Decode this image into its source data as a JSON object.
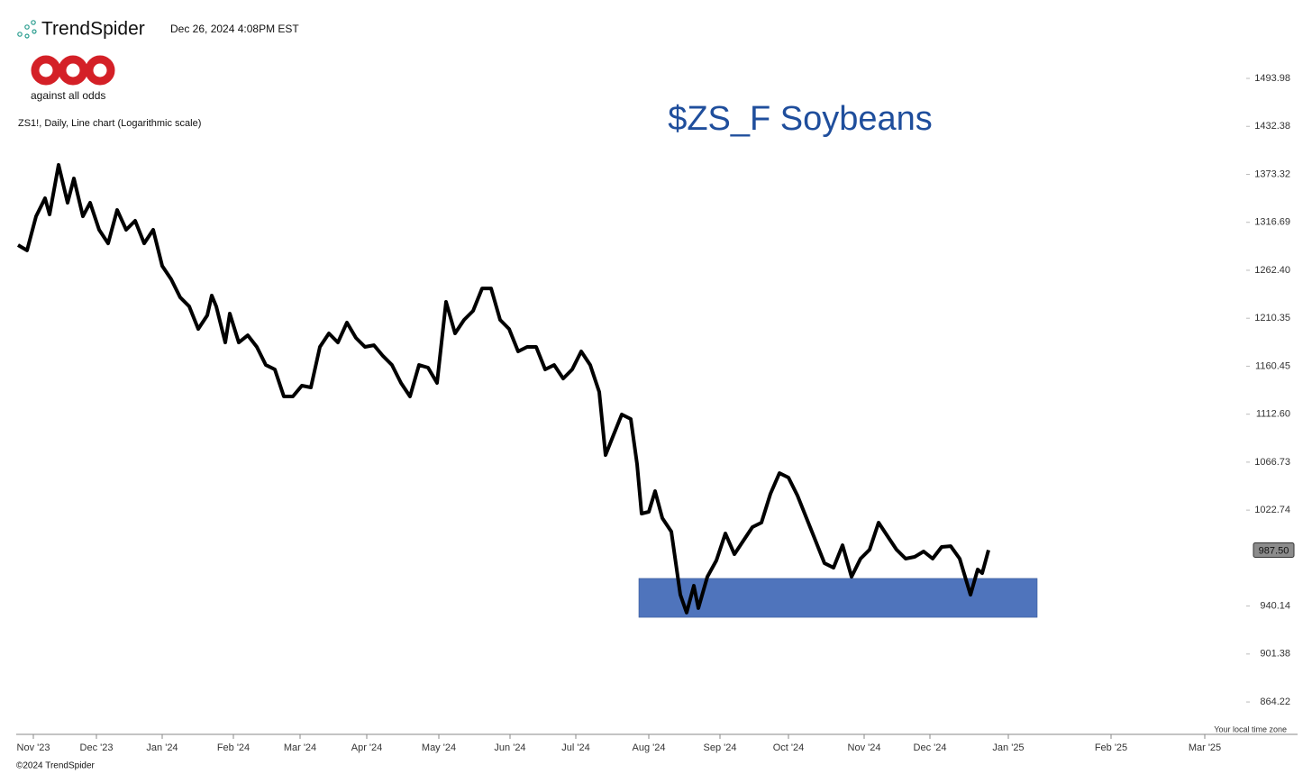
{
  "brand": "TrendSpider",
  "timestamp": "Dec 26, 2024 4:08PM EST",
  "logo_text": "against all odds",
  "copyright": "©2024 TrendSpider",
  "chart_data": {
    "type": "line",
    "title": "$ZS_F Soybeans",
    "subtitle": "ZS1!, Daily, Line chart (Logarithmic scale)",
    "timezone_note": "Your local time zone",
    "log_scale": true,
    "color": "#000000",
    "x": [
      0,
      1,
      2,
      3,
      3.5,
      4.5,
      5.5,
      6.2,
      7.2,
      8,
      9,
      10,
      11,
      12,
      13,
      14,
      15,
      16,
      17,
      18,
      19,
      20,
      21,
      21.5,
      22,
      23,
      23.5,
      24.5,
      25.5,
      26.5,
      27.5,
      28.5,
      29.5,
      30.5,
      31.5,
      32.5,
      33.5,
      34.5,
      35.5,
      36.5,
      37.5,
      38.5,
      39.5,
      40.5,
      41.5,
      42.5,
      43.5,
      44.5,
      45.5,
      46.5,
      47.5,
      48.5,
      49.5,
      50.5,
      51.5,
      52.5,
      53.5,
      54.5,
      55.5,
      56.5,
      57.5,
      58.5,
      59.5,
      60.5,
      61.5,
      62.5,
      63.5,
      64.5,
      65.2,
      66,
      67,
      68,
      68.7,
      69.2,
      70,
      70.7,
      71.5,
      72.5,
      73.5,
      74.2,
      75,
      75.5,
      76.5,
      77.5,
      78.5,
      79.5,
      80.5,
      81.5,
      82.5,
      83.5,
      84.5,
      85.5,
      86.5,
      87.5,
      88.5,
      89.5,
      90.5,
      91.5,
      92.5,
      93.5,
      94.5,
      95.5,
      96.5,
      97.5,
      98.5,
      99.5,
      100.5,
      101.5,
      102.5,
      103.5,
      104.5,
      105.7,
      106.5,
      107,
      107.7
    ],
    "values": [
      1290.6,
      1284.6,
      1323.6,
      1344.8,
      1325.8,
      1384.8,
      1339.5,
      1368.4,
      1323.6,
      1339.5,
      1308.1,
      1292.6,
      1331.1,
      1308.1,
      1318.5,
      1292.6,
      1308.1,
      1267.3,
      1252.4,
      1232.7,
      1223.0,
      1199.0,
      1213.4,
      1234.7,
      1223.0,
      1184.9,
      1215.3,
      1184.9,
      1192.4,
      1180.3,
      1161.7,
      1157.2,
      1130.0,
      1130.0,
      1140.8,
      1139.0,
      1180.3,
      1194.4,
      1184.9,
      1205.8,
      1189.7,
      1180.3,
      1182.1,
      1170.9,
      1161.7,
      1143.5,
      1130.0,
      1161.7,
      1159.0,
      1143.5,
      1227.9,
      1194.4,
      1208.6,
      1218.2,
      1242.5,
      1242.5,
      1208.6,
      1199.0,
      1175.6,
      1180.3,
      1180.3,
      1157.2,
      1161.7,
      1148.0,
      1157.2,
      1175.6,
      1161.7,
      1134.5,
      1073.4,
      1090.6,
      1112.3,
      1107.9,
      1064.9,
      1019.6,
      1021.2,
      1039.9,
      1015.6,
      1003.6,
      949.5,
      934.7,
      957.0,
      938.4,
      964.6,
      978.5,
      1002.0,
      983.9,
      995.7,
      1007.6,
      1011.6,
      1037.5,
      1056.5,
      1052.4,
      1035.9,
      1015.6,
      995.7,
      976.1,
      972.3,
      991.7,
      964.6,
      980.1,
      987.8,
      1011.6,
      999.6,
      987.8,
      980.1,
      981.6,
      986.3,
      980.1,
      990.2,
      990.9,
      980.1,
      949.5,
      970.8,
      967.7,
      987.5
    ],
    "price_tag": {
      "value": 987.5,
      "label": "987.50"
    },
    "zone": {
      "x": [
        68.9,
        113.1
      ],
      "y": [
        930.9,
        963.2
      ],
      "color": "#4f74bc"
    },
    "xlim": [
      -0.2,
      142
    ],
    "xticks": [
      {
        "value": 1.7,
        "label": "Nov '23"
      },
      {
        "value": 8.7,
        "label": "Dec '23"
      },
      {
        "value": 16,
        "label": "Jan '24"
      },
      {
        "value": 23.9,
        "label": "Feb '24"
      },
      {
        "value": 31.3,
        "label": "Mar '24"
      },
      {
        "value": 38.7,
        "label": "Apr '24"
      },
      {
        "value": 46.7,
        "label": "May '24"
      },
      {
        "value": 54.6,
        "label": "Jun '24"
      },
      {
        "value": 61.9,
        "label": "Jul '24"
      },
      {
        "value": 70,
        "label": "Aug '24"
      },
      {
        "value": 77.9,
        "label": "Sep '24"
      },
      {
        "value": 85.5,
        "label": "Oct '24"
      },
      {
        "value": 93.9,
        "label": "Nov '24"
      },
      {
        "value": 101.2,
        "label": "Dec '24"
      },
      {
        "value": 109.9,
        "label": "Jan '25"
      },
      {
        "value": 121.3,
        "label": "Feb '25"
      },
      {
        "value": 131.7,
        "label": "Mar '25"
      }
    ],
    "ylim": [
      840,
      1532.3
    ],
    "yticks": [
      1493.98,
      1432.38,
      1373.32,
      1316.69,
      {
        "value": 1262.4,
        "label": "1262.40"
      },
      1210.35,
      1160.45,
      {
        "value": 1112.6,
        "label": "1112.60"
      },
      1066.73,
      1022.74,
      940.14,
      901.38,
      864.22
    ]
  }
}
